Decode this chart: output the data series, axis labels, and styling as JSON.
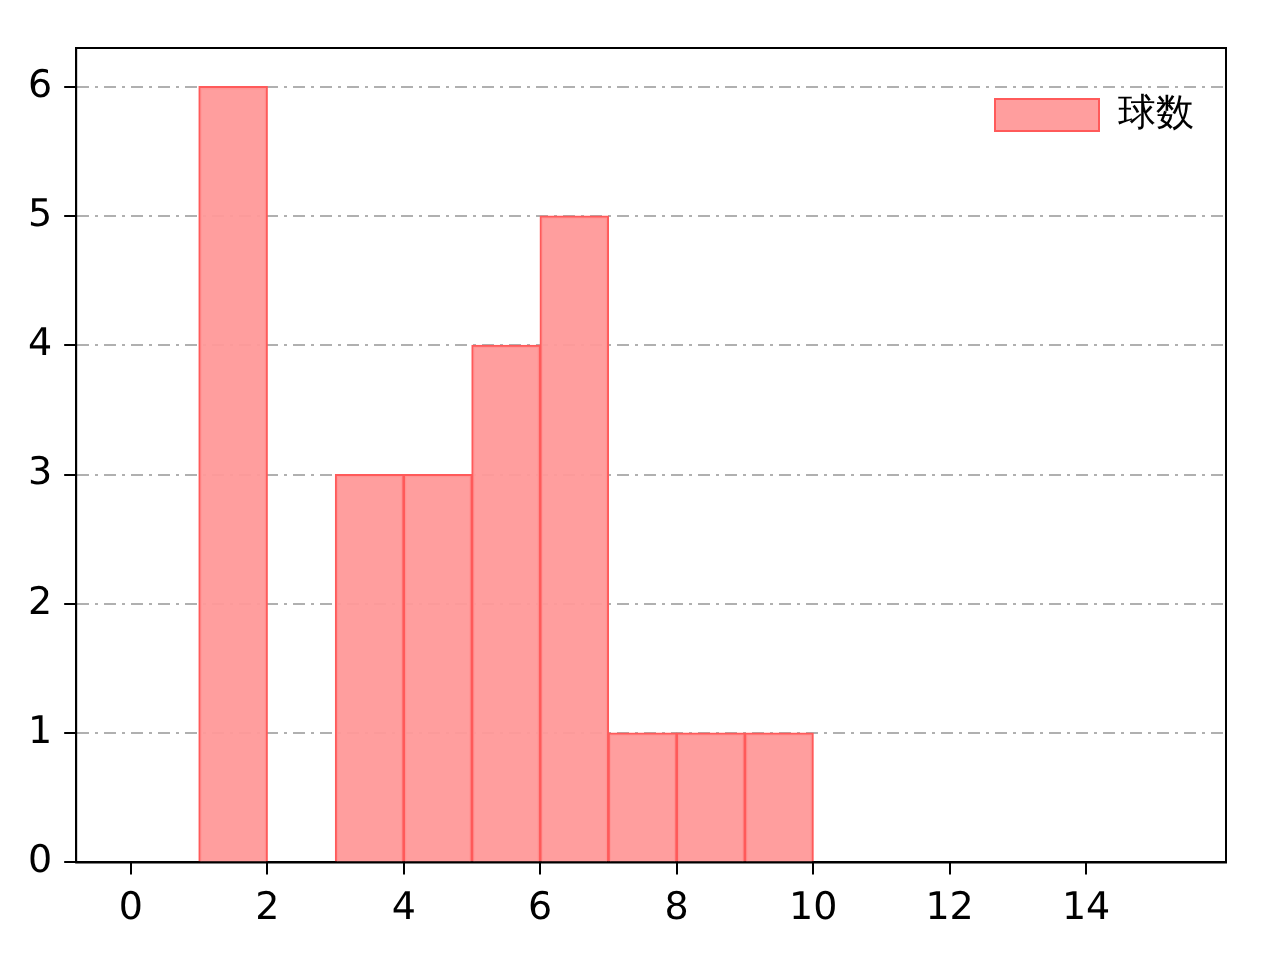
{
  "chart_data": {
    "type": "histogram",
    "bins": [
      1,
      2,
      3,
      4,
      5,
      6,
      7,
      8,
      9,
      10
    ],
    "series": [
      {
        "name": "球数",
        "color": "#ff9999",
        "values": [
          6,
          0,
          3,
          3,
          4,
          5,
          1,
          1,
          1
        ]
      }
    ],
    "xlim": [
      -0.8,
      16.05
    ],
    "xticks": [
      0,
      2,
      4,
      6,
      8,
      10,
      12,
      14
    ],
    "ylim": [
      0,
      6.3
    ],
    "yticks": [
      0,
      1,
      2,
      3,
      4,
      5,
      6
    ],
    "grid": "y",
    "legend": "top right"
  }
}
